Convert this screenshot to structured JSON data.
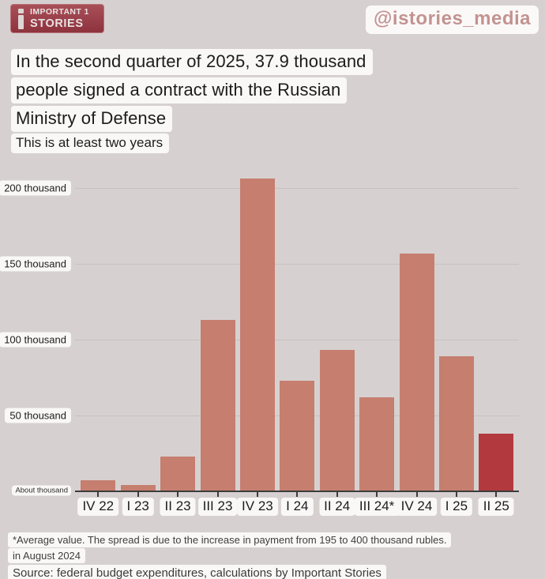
{
  "header": {
    "logo": {
      "icon": "i-letter-icon",
      "line1": "IMPORTANT 1",
      "line2": "STORIES"
    },
    "handle": "@istories_media"
  },
  "title": {
    "lines": [
      "In the second quarter of 2025, 37.9 thousand",
      "people signed a contract with the Russian",
      "Ministry of Defense"
    ]
  },
  "subtitle": "This is at least two years",
  "chart_data": {
    "type": "bar",
    "categories": [
      "IV 22",
      "I 23",
      "II 23",
      "III 23",
      "IV 23",
      "I 24",
      "II 24",
      "III 24*",
      "IV 24",
      "I 25",
      "II 25"
    ],
    "values": [
      7.5,
      4,
      23,
      113,
      206,
      73,
      93,
      62,
      157,
      89,
      37.9
    ],
    "unit": "thousand people",
    "title": "People who signed a contract with the Russian Ministry of Defense, by quarter",
    "xlabel": "",
    "ylabel": "",
    "ylim": [
      0,
      212
    ],
    "y_ticks": [
      {
        "value": 200,
        "label": "200 thousand"
      },
      {
        "value": 150,
        "label": "150 thousand"
      },
      {
        "value": 100,
        "label": "100 thousand"
      },
      {
        "value": 50,
        "label": "50 thousand"
      },
      {
        "value": 0,
        "label": "About thousand"
      }
    ],
    "grid": true,
    "legend": false,
    "bar_color": "#c67e6f",
    "highlight_color": "#b23a3e",
    "highlight_index": 10
  },
  "footnote": {
    "lines": [
      "*Average value. The spread is due to the increase in payment from 195 to 400 thousand rubles.",
      "in August 2024"
    ]
  },
  "source": "Source: federal budget expenditures, calculations by Important Stories",
  "colors": {
    "background": "#d6d1d0",
    "chip": "#faf8f7",
    "bar": "#c67e6f",
    "bar_highlight": "#b23a3e",
    "logo_background": "#9a3f4a",
    "handle_text": "#c29391",
    "axis": "#3c3c3c",
    "gridline": "#c7c0bf"
  }
}
